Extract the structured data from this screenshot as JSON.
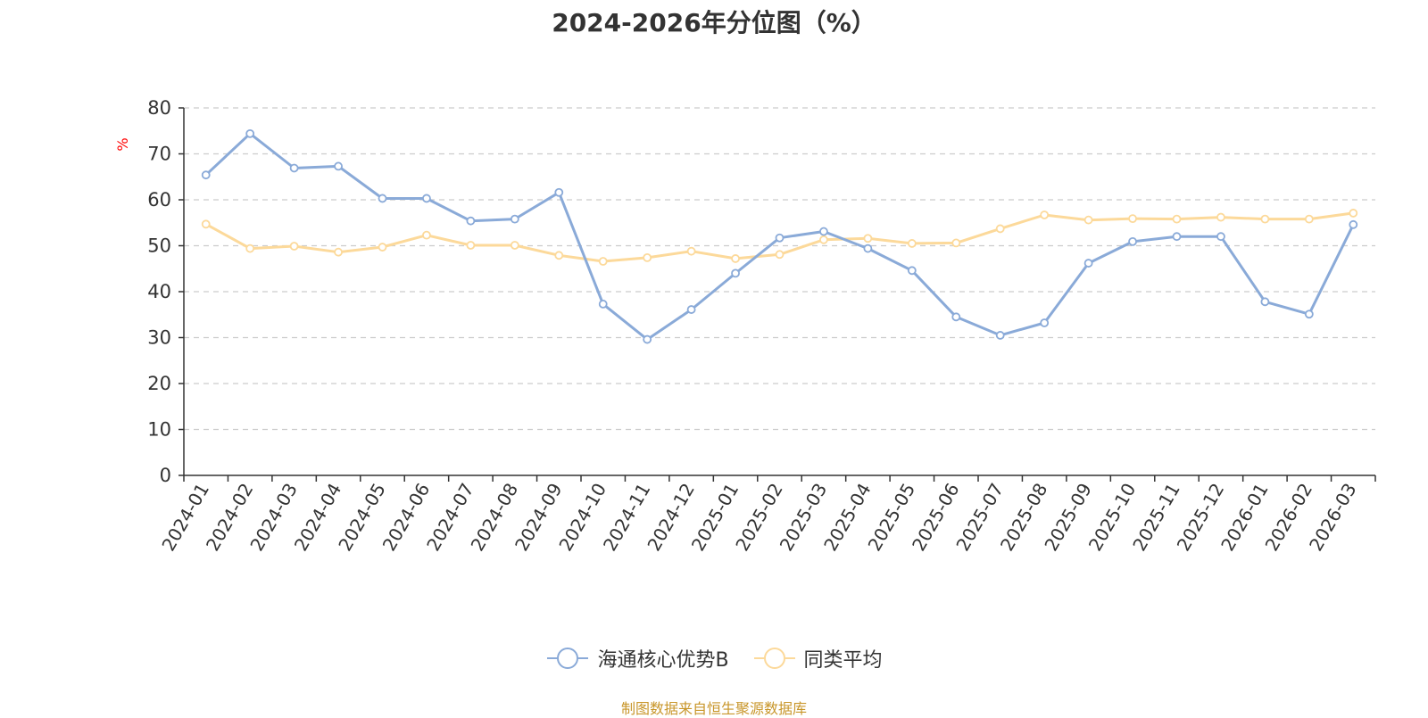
{
  "title": "2024-2026年分位图（%）",
  "source_note": "制图数据来自恒生聚源数据库",
  "colors": {
    "series1": "#8aaad8",
    "series2": "#fcd99a",
    "unit": "#ff0000",
    "grid": "#cccccc",
    "axis": "#333333"
  },
  "chart_data": {
    "type": "line",
    "title": "2024-2026年分位图（%）",
    "xlabel": "",
    "ylabel": "%",
    "ylim": [
      0,
      80
    ],
    "yticks": [
      0,
      10,
      20,
      30,
      40,
      50,
      60,
      70,
      80
    ],
    "grid": true,
    "legend_position": "bottom",
    "categories": [
      "2024-01",
      "2024-02",
      "2024-03",
      "2024-04",
      "2024-05",
      "2024-06",
      "2024-07",
      "2024-08",
      "2024-09",
      "2024-10",
      "2024-11",
      "2024-12",
      "2025-01",
      "2025-02",
      "2025-03",
      "2025-04",
      "2025-05",
      "2025-06",
      "2025-07",
      "2025-08",
      "2025-09",
      "2025-10",
      "2025-11",
      "2025-12",
      "2026-01",
      "2026-02",
      "2026-03"
    ],
    "series": [
      {
        "name": "海通核心优势B",
        "color": "#8aaad8",
        "values": [
          65.4,
          74.4,
          66.9,
          67.3,
          60.3,
          60.3,
          55.4,
          55.8,
          61.6,
          37.3,
          29.6,
          36.1,
          44.0,
          51.7,
          53.1,
          49.4,
          44.6,
          34.5,
          30.5,
          33.2,
          46.2,
          50.9,
          52.0,
          52.0,
          37.8,
          35.1,
          54.6
        ]
      },
      {
        "name": "同类平均",
        "color": "#fcd99a",
        "values": [
          54.7,
          49.4,
          49.9,
          48.6,
          49.7,
          52.3,
          50.1,
          50.1,
          47.9,
          46.6,
          47.4,
          48.8,
          47.2,
          48.1,
          51.3,
          51.6,
          50.5,
          50.6,
          53.7,
          56.7,
          55.6,
          55.9,
          55.8,
          56.2,
          55.8,
          55.8,
          57.1
        ]
      }
    ]
  }
}
